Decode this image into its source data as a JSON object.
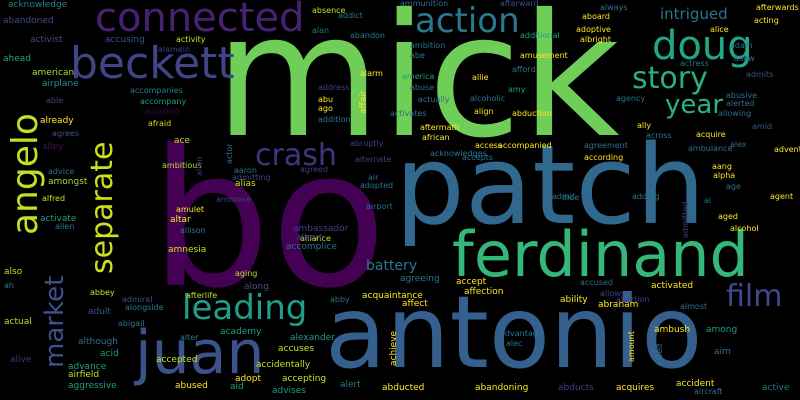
{
  "colors": {
    "background": "#000000",
    "palette": [
      "#440154",
      "#46327e",
      "#365c8d",
      "#277f8e",
      "#1fa187",
      "#4ac16d",
      "#a0da39",
      "#fde725"
    ]
  },
  "words": [
    {
      "text": "mick"
    },
    {
      "text": "bo"
    },
    {
      "text": "patch"
    },
    {
      "text": "antonio"
    },
    {
      "text": "ferdinand"
    },
    {
      "text": "connected"
    },
    {
      "text": "beckett"
    },
    {
      "text": "angelo"
    },
    {
      "text": "juan"
    },
    {
      "text": "doug"
    },
    {
      "text": "separate"
    },
    {
      "text": "action"
    },
    {
      "text": "market"
    },
    {
      "text": "leading"
    },
    {
      "text": "crash"
    },
    {
      "text": "story"
    },
    {
      "text": "film"
    },
    {
      "text": "year"
    },
    {
      "text": "intrigued"
    },
    {
      "text": "battery"
    },
    {
      "text": "acknowledge"
    },
    {
      "text": "abandoned"
    },
    {
      "text": "activist"
    },
    {
      "text": "ahead"
    },
    {
      "text": "accusing"
    },
    {
      "text": "alamein"
    },
    {
      "text": "activity"
    },
    {
      "text": "american"
    },
    {
      "text": "airplane"
    },
    {
      "text": "able"
    },
    {
      "text": "accompanies"
    },
    {
      "text": "accompany"
    },
    {
      "text": "acquired"
    },
    {
      "text": "already"
    },
    {
      "text": "agrees"
    },
    {
      "text": "alley"
    },
    {
      "text": "afraid"
    },
    {
      "text": "ace"
    },
    {
      "text": "ambitious"
    },
    {
      "text": "advice"
    },
    {
      "text": "amongst"
    },
    {
      "text": "alfred"
    },
    {
      "text": "activate"
    },
    {
      "text": "allen"
    },
    {
      "text": "also"
    },
    {
      "text": "ah"
    },
    {
      "text": "actual"
    },
    {
      "text": "alive"
    },
    {
      "text": "aggressive"
    },
    {
      "text": "advance"
    },
    {
      "text": "airfield"
    },
    {
      "text": "although"
    },
    {
      "text": "adult"
    },
    {
      "text": "abbey"
    },
    {
      "text": "admiral"
    },
    {
      "text": "alongside"
    },
    {
      "text": "abigail"
    },
    {
      "text": "acid"
    },
    {
      "text": "alter"
    },
    {
      "text": "altar"
    },
    {
      "text": "amulet"
    },
    {
      "text": "allison"
    },
    {
      "text": "alias"
    },
    {
      "text": "aaron"
    },
    {
      "text": "amnesia"
    },
    {
      "text": "aging"
    },
    {
      "text": "along"
    },
    {
      "text": "abby"
    },
    {
      "text": "afterlife"
    },
    {
      "text": "academy"
    },
    {
      "text": "accepted"
    },
    {
      "text": "abused"
    },
    {
      "text": "adopt"
    },
    {
      "text": "aid"
    },
    {
      "text": "advises"
    },
    {
      "text": "accidentally"
    },
    {
      "text": "accepting"
    },
    {
      "text": "alexander"
    },
    {
      "text": "accuses"
    },
    {
      "text": "alert"
    },
    {
      "text": "abducted"
    },
    {
      "text": "acquaintance"
    },
    {
      "text": "agreeing"
    },
    {
      "text": "accept"
    },
    {
      "text": "affection"
    },
    {
      "text": "affect"
    },
    {
      "text": "achieve"
    },
    {
      "text": "abandoning"
    },
    {
      "text": "alec"
    },
    {
      "text": "advantage"
    },
    {
      "text": "abducts"
    },
    {
      "text": "acquires"
    },
    {
      "text": "accident"
    },
    {
      "text": "aircraft"
    },
    {
      "text": "active"
    },
    {
      "text": "ambush"
    },
    {
      "text": "among"
    },
    {
      "text": "aim"
    },
    {
      "text": "abraham"
    },
    {
      "text": "almost"
    },
    {
      "text": "ability"
    },
    {
      "text": "accused"
    },
    {
      "text": "allows"
    },
    {
      "text": "abortion"
    },
    {
      "text": "activated"
    },
    {
      "text": "amount"
    },
    {
      "text": "aided"
    },
    {
      "text": "act"
    },
    {
      "text": "agree"
    },
    {
      "text": "alone"
    },
    {
      "text": "account"
    },
    {
      "text": "absence"
    },
    {
      "text": "addict"
    },
    {
      "text": "alan"
    },
    {
      "text": "abandon"
    },
    {
      "text": "ammunition"
    },
    {
      "text": "afterward"
    },
    {
      "text": "additional"
    },
    {
      "text": "adoptive"
    },
    {
      "text": "albright"
    },
    {
      "text": "aboard"
    },
    {
      "text": "always"
    },
    {
      "text": "alice"
    },
    {
      "text": "acting"
    },
    {
      "text": "ambition"
    },
    {
      "text": "abe"
    },
    {
      "text": "amusement"
    },
    {
      "text": "afford"
    },
    {
      "text": "allie"
    },
    {
      "text": "amy"
    },
    {
      "text": "actress"
    },
    {
      "text": "alarm"
    },
    {
      "text": "america"
    },
    {
      "text": "abuse"
    },
    {
      "text": "actually"
    },
    {
      "text": "adam"
    },
    {
      "text": "afterwards"
    },
    {
      "text": "allow"
    },
    {
      "text": "admits"
    },
    {
      "text": "abusive"
    },
    {
      "text": "alerted"
    },
    {
      "text": "allowing"
    },
    {
      "text": "amid"
    },
    {
      "text": "address"
    },
    {
      "text": "abu"
    },
    {
      "text": "ago"
    },
    {
      "text": "addition"
    },
    {
      "text": "activates"
    },
    {
      "text": "aftermath"
    },
    {
      "text": "african"
    },
    {
      "text": "admitting"
    },
    {
      "text": "alien"
    },
    {
      "text": "actor"
    },
    {
      "text": "affair"
    },
    {
      "text": "alcoholic"
    },
    {
      "text": "align"
    },
    {
      "text": "abduction"
    },
    {
      "text": "agency"
    },
    {
      "text": "ally"
    },
    {
      "text": "across"
    },
    {
      "text": "acquire"
    },
    {
      "text": "alex"
    },
    {
      "text": "adventure"
    },
    {
      "text": "abruptly"
    },
    {
      "text": "acknowledges"
    },
    {
      "text": "access"
    },
    {
      "text": "accompanied"
    },
    {
      "text": "agreement"
    },
    {
      "text": "according"
    },
    {
      "text": "ambulance"
    },
    {
      "text": "accepts"
    },
    {
      "text": "alternate"
    },
    {
      "text": "aang"
    },
    {
      "text": "alpha"
    },
    {
      "text": "age"
    },
    {
      "text": "agreed"
    },
    {
      "text": "air"
    },
    {
      "text": "adopted"
    },
    {
      "text": "admit"
    },
    {
      "text": "aide"
    },
    {
      "text": "adding"
    },
    {
      "text": "admitted"
    },
    {
      "text": "al"
    },
    {
      "text": "agent"
    },
    {
      "text": "aged"
    },
    {
      "text": "alcohol"
    },
    {
      "text": "ambrose"
    },
    {
      "text": "alliance"
    },
    {
      "text": "airport"
    },
    {
      "text": "ambassador"
    },
    {
      "text": "albert"
    },
    {
      "text": "accomplice"
    },
    {
      "text": "alison"
    },
    {
      "text": "amends"
    },
    {
      "text": "ad"
    },
    {
      "text": "ambushed"
    },
    {
      "text": "advanced"
    }
  ]
}
